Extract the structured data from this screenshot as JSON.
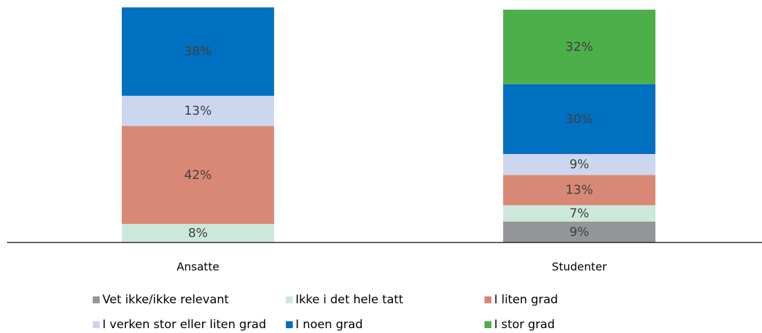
{
  "chart_data": {
    "type": "bar",
    "stacked": true,
    "categories": [
      "Ansatte",
      "Studenter"
    ],
    "series": [
      {
        "name": "Vet ikke/ikke relevant",
        "color": "#939598",
        "values": [
          0,
          9
        ]
      },
      {
        "name": "Ikke i det hele tatt",
        "color": "#cce8da",
        "values": [
          8,
          7
        ]
      },
      {
        "name": "I liten grad",
        "color": "#d98876",
        "values": [
          42,
          13
        ]
      },
      {
        "name": "I verken stor eller liten grad",
        "color": "#ccd6ee",
        "values": [
          13,
          9
        ]
      },
      {
        "name": "I noen grad",
        "color": "#0070c0",
        "values": [
          38,
          30
        ]
      },
      {
        "name": "I stor grad",
        "color": "#4daf4a",
        "values": [
          0,
          32
        ]
      }
    ],
    "value_suffix": "%",
    "ylim": [
      0,
      100
    ],
    "grid": false,
    "legend_position": "bottom"
  }
}
